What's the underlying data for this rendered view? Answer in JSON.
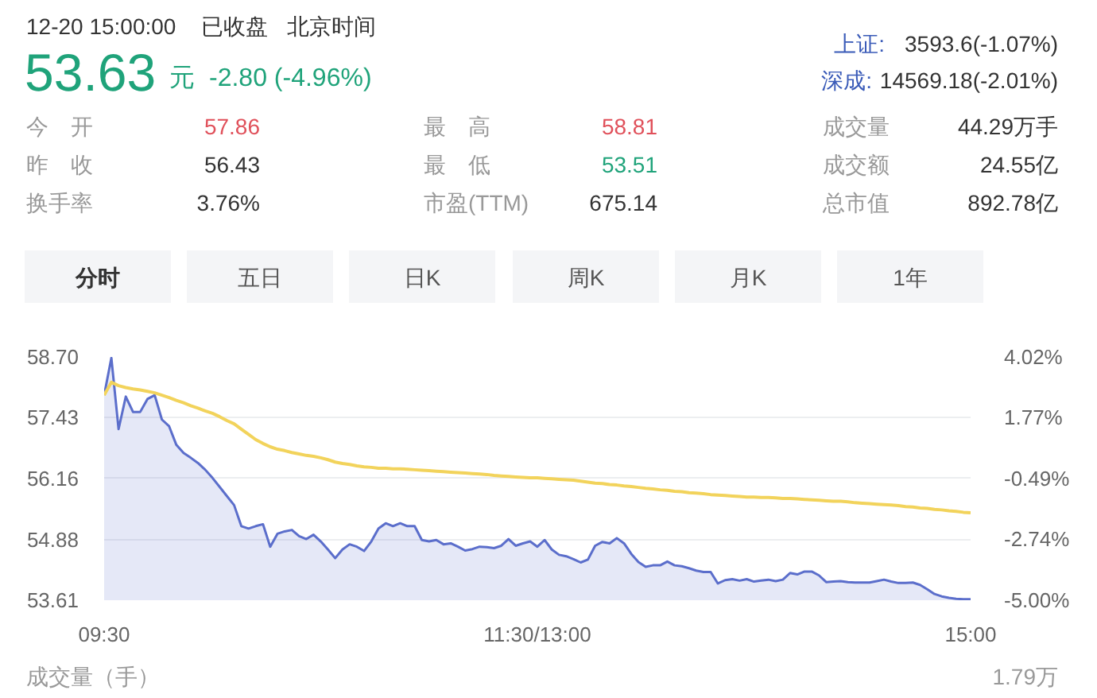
{
  "chart_data": {
    "type": "line",
    "annotations": [
      "12-20 15:00:00",
      "已收盘",
      "北京时间",
      "53.63",
      "元",
      "-2.80 (-4.96%)",
      "上证:",
      "3593.6(-1.07%)",
      "深成:",
      "14569.18(-2.01%)",
      "今　开",
      "57.86",
      "最　高",
      "58.81",
      "成交量",
      "44.29万手",
      "昨　收",
      "56.43",
      "最　低",
      "53.51",
      "成交额",
      "24.55亿",
      "换手率",
      "3.76%",
      "市盈(TTM)",
      "675.14",
      "总市值",
      "892.78亿",
      "分时",
      "五日",
      "日K",
      "周K",
      "月K",
      "1年",
      "成交量（手）",
      "1.79万"
    ],
    "categories": [
      "09:30",
      null,
      null,
      null,
      null,
      null,
      null,
      null,
      null,
      null,
      null,
      null,
      null,
      null,
      null,
      null,
      null,
      null,
      null,
      null,
      null,
      null,
      null,
      null,
      null,
      null,
      null,
      null,
      null,
      null,
      null,
      null,
      null,
      null,
      null,
      null,
      null,
      null,
      null,
      null,
      null,
      null,
      null,
      null,
      null,
      null,
      null,
      null,
      null,
      null,
      null,
      null,
      null,
      null,
      null,
      null,
      null,
      null,
      null,
      null,
      "11:30/13:00",
      null,
      null,
      null,
      null,
      null,
      null,
      null,
      null,
      null,
      null,
      null,
      null,
      null,
      null,
      null,
      null,
      null,
      null,
      null,
      null,
      null,
      null,
      null,
      null,
      null,
      null,
      null,
      null,
      null,
      null,
      null,
      null,
      null,
      null,
      null,
      null,
      null,
      null,
      null,
      null,
      null,
      null,
      null,
      null,
      null,
      null,
      null,
      null,
      null,
      null,
      null,
      null,
      null,
      null,
      null,
      null,
      null,
      null,
      null,
      "15:00"
    ],
    "series": [
      {
        "type": "area",
        "color": "#5b6ecb",
        "values": [
          57.9,
          58.68,
          57.19,
          57.87,
          57.55,
          57.55,
          57.82,
          57.9,
          57.39,
          57.25,
          56.86,
          56.69,
          56.59,
          56.48,
          56.34,
          56.17,
          55.98,
          55.79,
          55.6,
          55.16,
          55.11,
          55.16,
          55.2,
          54.73,
          55.0,
          55.05,
          55.08,
          54.95,
          54.89,
          54.98,
          54.84,
          54.67,
          54.49,
          54.67,
          54.78,
          54.73,
          54.64,
          54.84,
          55.11,
          55.22,
          55.16,
          55.22,
          55.16,
          55.16,
          54.87,
          54.84,
          54.87,
          54.78,
          54.8,
          54.73,
          54.65,
          54.68,
          54.73,
          54.72,
          54.7,
          54.75,
          54.89,
          54.75,
          54.8,
          54.84,
          54.73,
          54.87,
          54.67,
          54.56,
          54.53,
          54.47,
          54.4,
          54.46,
          54.75,
          54.83,
          54.8,
          54.91,
          54.8,
          54.58,
          54.41,
          54.31,
          54.34,
          54.34,
          54.42,
          54.34,
          54.32,
          54.28,
          54.23,
          54.2,
          54.2,
          53.96,
          54.03,
          54.05,
          54.02,
          54.05,
          54.0,
          54.02,
          54.04,
          54.01,
          54.04,
          54.18,
          54.15,
          54.21,
          54.21,
          54.13,
          53.99,
          54.0,
          54.01,
          53.99,
          53.98,
          53.98,
          53.98,
          54.01,
          54.04,
          54.0,
          53.97,
          53.97,
          53.98,
          53.93,
          53.84,
          53.74,
          53.69,
          53.66,
          53.64,
          53.63,
          53.63
        ]
      },
      {
        "color": "#f2d35b",
        "values": [
          57.9,
          58.17,
          58.1,
          58.06,
          58.03,
          58.01,
          57.98,
          57.95,
          57.9,
          57.85,
          57.79,
          57.74,
          57.68,
          57.63,
          57.57,
          57.52,
          57.45,
          57.37,
          57.3,
          57.19,
          57.08,
          56.97,
          56.89,
          56.82,
          56.77,
          56.74,
          56.7,
          56.67,
          56.64,
          56.62,
          56.59,
          56.55,
          56.5,
          56.47,
          56.45,
          56.42,
          56.4,
          56.39,
          56.37,
          56.37,
          56.36,
          56.36,
          56.35,
          56.34,
          56.33,
          56.32,
          56.31,
          56.3,
          56.29,
          56.28,
          56.27,
          56.26,
          56.25,
          56.24,
          56.22,
          56.21,
          56.2,
          56.19,
          56.18,
          56.17,
          56.17,
          56.16,
          56.15,
          56.14,
          56.13,
          56.12,
          56.1,
          56.08,
          56.06,
          56.05,
          56.03,
          56.02,
          56.0,
          55.99,
          55.97,
          55.95,
          55.94,
          55.92,
          55.91,
          55.89,
          55.88,
          55.86,
          55.85,
          55.84,
          55.82,
          55.81,
          55.8,
          55.79,
          55.78,
          55.77,
          55.77,
          55.76,
          55.76,
          55.75,
          55.74,
          55.74,
          55.73,
          55.72,
          55.71,
          55.7,
          55.69,
          55.68,
          55.68,
          55.67,
          55.65,
          55.64,
          55.63,
          55.62,
          55.61,
          55.6,
          55.59,
          55.57,
          55.56,
          55.54,
          55.53,
          55.51,
          55.5,
          55.48,
          55.47,
          55.45,
          55.44
        ]
      }
    ],
    "ylim": [
      53.61,
      58.7
    ],
    "yticks": [
      {
        "value": 58.7,
        "label": "58.70"
      },
      57.43,
      56.16,
      54.88,
      53.61
    ],
    "y2lim": [
      -5,
      4.02
    ],
    "y2ticks": [
      {
        "value": 4.02,
        "label": "4.02%"
      },
      {
        "value": 1.77,
        "label": "1.77%"
      },
      {
        "value": -0.49,
        "label": "-0.49%"
      },
      {
        "value": -2.74,
        "label": "-2.74%"
      },
      {
        "value": -5,
        "label": "-5.00%"
      }
    ],
    "grid": "y"
  }
}
